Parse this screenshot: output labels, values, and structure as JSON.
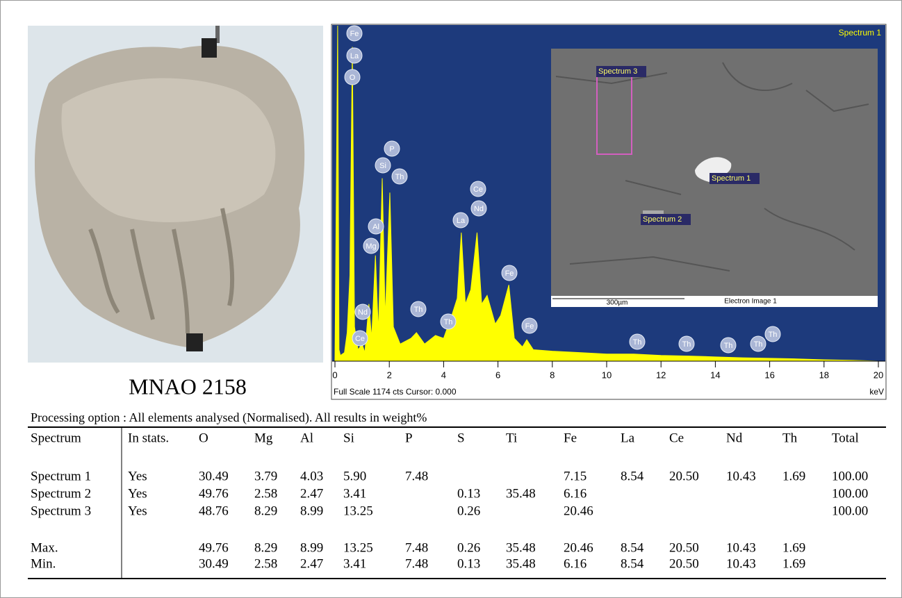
{
  "photo": {
    "caption": "MNAO 2158"
  },
  "chart_data": {
    "type": "area",
    "title": "Spectrum 1",
    "footer": "Full Scale 1174 cts Cursor: 0.000",
    "xlabel": "keV",
    "color": "#ffff00",
    "background": "#1d3a7c",
    "xlim": [
      0,
      20
    ],
    "xticks": [
      0,
      2,
      4,
      6,
      8,
      10,
      12,
      14,
      16,
      18,
      20
    ],
    "ylim": [
      0,
      1174
    ],
    "x": [
      0,
      0.1,
      0.15,
      0.2,
      0.35,
      0.45,
      0.55,
      0.64,
      0.72,
      0.85,
      1.0,
      1.1,
      1.25,
      1.35,
      1.49,
      1.6,
      1.74,
      1.85,
      2.02,
      2.15,
      2.4,
      2.8,
      3.0,
      3.3,
      3.7,
      4.0,
      4.3,
      4.5,
      4.65,
      4.8,
      5.0,
      5.23,
      5.4,
      5.6,
      5.9,
      6.1,
      6.4,
      6.6,
      6.9,
      7.06,
      7.3,
      8,
      9,
      10,
      11,
      12,
      13,
      14,
      15,
      16,
      17,
      18,
      19,
      20
    ],
    "values": [
      0,
      1174,
      40,
      20,
      30,
      100,
      300,
      1100,
      120,
      40,
      60,
      30,
      200,
      80,
      370,
      100,
      640,
      150,
      590,
      120,
      60,
      80,
      100,
      60,
      90,
      80,
      160,
      220,
      450,
      200,
      250,
      450,
      200,
      230,
      130,
      160,
      267,
      80,
      50,
      75,
      40,
      35,
      30,
      25,
      25,
      20,
      18,
      15,
      12,
      10,
      8,
      5,
      3,
      0
    ],
    "peak_labels": [
      "Fe",
      "La",
      "O",
      "P",
      "Si",
      "Th",
      "Al",
      "Mg",
      "Ce",
      "Nd",
      "La",
      "Fe",
      "Nd",
      "Th",
      "Th",
      "Fe",
      "Ce",
      "Th",
      "Th",
      "Th",
      "Th",
      "Th"
    ]
  },
  "sem_image": {
    "labels": [
      "Spectrum 3",
      "Spectrum 1",
      "Spectrum 2"
    ],
    "scale_bar": "300µm",
    "caption": "Electron Image 1"
  },
  "table": {
    "caption": "Processing option : All elements analysed (Normalised). All results in weight%",
    "header": [
      "Spectrum",
      "In stats.",
      "O",
      "Mg",
      "Al",
      "Si",
      "P",
      "S",
      "Ti",
      "Fe",
      "La",
      "Ce",
      "Nd",
      "Th",
      "Total"
    ],
    "rows": [
      [
        "Spectrum 1",
        "Yes",
        "30.49",
        "3.79",
        "4.03",
        "5.90",
        "7.48",
        null,
        null,
        "7.15",
        "8.54",
        "20.50",
        "10.43",
        "1.69",
        "100.00"
      ],
      [
        "Spectrum 2",
        "Yes",
        "49.76",
        "2.58",
        "2.47",
        "3.41",
        null,
        "0.13",
        "35.48",
        "6.16",
        null,
        null,
        null,
        null,
        "100.00"
      ],
      [
        "Spectrum 3",
        "Yes",
        "48.76",
        "8.29",
        "8.99",
        "13.25",
        null,
        "0.26",
        null,
        "20.46",
        null,
        null,
        null,
        null,
        "100.00"
      ],
      [
        "Max.",
        null,
        "49.76",
        "8.29",
        "8.99",
        "13.25",
        "7.48",
        "0.26",
        "35.48",
        "20.46",
        "8.54",
        "20.50",
        "10.43",
        "1.69",
        null
      ],
      [
        "Min.",
        null,
        "30.49",
        "2.58",
        "2.47",
        "3.41",
        "7.48",
        "0.13",
        "35.48",
        "6.16",
        "8.54",
        "20.50",
        "10.43",
        "1.69",
        null
      ]
    ]
  }
}
